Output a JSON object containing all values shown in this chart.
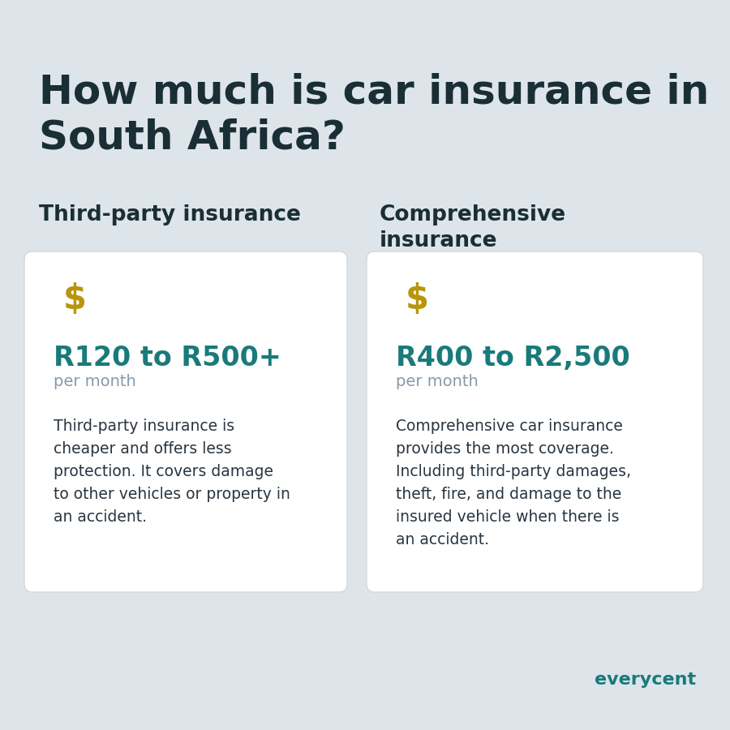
{
  "background_color": "#dde4ea",
  "title_line1": "How much is car insurance in",
  "title_line2": "South Africa?",
  "title_color": "#1a2e35",
  "title_fontsize": 36,
  "card1_header": "Third-party insurance",
  "card2_header": "Comprehensive\ninsurance",
  "header_fontsize": 19,
  "header_color": "#1a2e35",
  "card1_price": "R120 to R500+",
  "card2_price": "R400 to R2,500",
  "price_color": "#1a7a7a",
  "price_fontsize": 24,
  "per_month": "per month",
  "per_month_color": "#8899aa",
  "per_month_fontsize": 14,
  "card1_desc": "Third-party insurance is\ncheaper and offers less\nprotection. It covers damage\nto other vehicles or property in\nan accident.",
  "card2_desc": "Comprehensive car insurance\nprovides the most coverage.\nIncluding third-party damages,\ntheft, fire, and damage to the\ninsured vehicle when there is\nan accident.",
  "desc_color": "#2a3540",
  "desc_fontsize": 13.5,
  "card_bg": "#ffffff",
  "card_border": "#d8d8d8",
  "emoji": "💰",
  "brand": "everycent",
  "brand_color": "#1a7a7a",
  "brand_fontsize": 16,
  "fig_width": 9.0,
  "fig_height": 9.0,
  "dpi": 100
}
